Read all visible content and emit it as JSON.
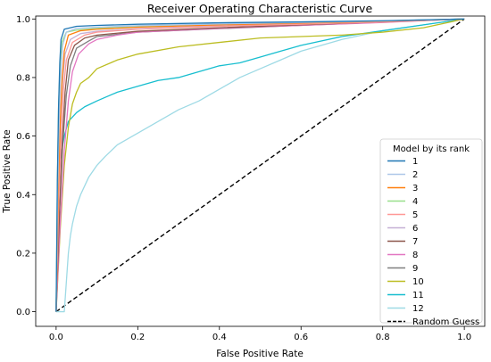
{
  "chart_data": {
    "type": "line",
    "title": "Receiver Operating Characteristic Curve",
    "xlabel": "False Positive Rate",
    "ylabel": "True Positive Rate",
    "xlim": [
      -0.05,
      1.05
    ],
    "ylim": [
      -0.05,
      1.01
    ],
    "xticks": [
      "0.0",
      "0.2",
      "0.4",
      "0.6",
      "0.8",
      "1.0"
    ],
    "yticks": [
      "0.0",
      "0.2",
      "0.4",
      "0.6",
      "0.8",
      "1.0"
    ],
    "grid": false,
    "legend": {
      "title": "Model by its rank",
      "placement": "lower-right"
    },
    "series": [
      {
        "name": "1",
        "color": "#1f77b4",
        "x": [
          0,
          0.003,
          0.006,
          0.009,
          0.012,
          0.02,
          0.05,
          0.1,
          0.2,
          0.4,
          0.6,
          0.8,
          1.0
        ],
        "y": [
          0,
          0.45,
          0.7,
          0.85,
          0.93,
          0.965,
          0.975,
          0.978,
          0.982,
          0.987,
          0.99,
          0.994,
          1.0
        ]
      },
      {
        "name": "2",
        "color": "#aec7e8",
        "x": [
          0,
          0.004,
          0.008,
          0.012,
          0.016,
          0.025,
          0.05,
          0.1,
          0.2,
          0.4,
          0.6,
          0.8,
          1.0
        ],
        "y": [
          0,
          0.42,
          0.68,
          0.83,
          0.91,
          0.955,
          0.968,
          0.972,
          0.977,
          0.983,
          0.988,
          0.993,
          1.0
        ]
      },
      {
        "name": "3",
        "color": "#ff7f0e",
        "x": [
          0,
          0.005,
          0.01,
          0.015,
          0.02,
          0.03,
          0.06,
          0.1,
          0.2,
          0.4,
          0.6,
          0.8,
          1.0
        ],
        "y": [
          0,
          0.4,
          0.65,
          0.8,
          0.89,
          0.945,
          0.96,
          0.965,
          0.972,
          0.98,
          0.986,
          0.992,
          1.0
        ]
      },
      {
        "name": "4",
        "color": "#98df8a",
        "x": [
          0,
          0.003,
          0.006,
          0.01,
          0.014,
          0.025,
          0.05,
          0.1,
          0.2,
          0.4,
          0.6,
          0.8,
          1.0
        ],
        "y": [
          0,
          0.42,
          0.7,
          0.85,
          0.92,
          0.955,
          0.962,
          0.968,
          0.975,
          0.982,
          0.988,
          0.993,
          1.0
        ]
      },
      {
        "name": "5",
        "color": "#ff9896",
        "x": [
          0,
          0.006,
          0.012,
          0.018,
          0.025,
          0.04,
          0.07,
          0.1,
          0.2,
          0.4,
          0.6,
          0.8,
          1.0
        ],
        "y": [
          0,
          0.35,
          0.6,
          0.76,
          0.86,
          0.92,
          0.945,
          0.955,
          0.965,
          0.975,
          0.982,
          0.99,
          1.0
        ]
      },
      {
        "name": "6",
        "color": "#c5b0d5",
        "x": [
          0,
          0.005,
          0.01,
          0.016,
          0.022,
          0.035,
          0.06,
          0.1,
          0.2,
          0.4,
          0.6,
          0.8,
          1.0
        ],
        "y": [
          0,
          0.38,
          0.63,
          0.79,
          0.88,
          0.93,
          0.95,
          0.958,
          0.967,
          0.977,
          0.984,
          0.991,
          1.0
        ]
      },
      {
        "name": "7",
        "color": "#8c564b",
        "x": [
          0,
          0.008,
          0.015,
          0.022,
          0.03,
          0.045,
          0.07,
          0.1,
          0.2,
          0.4,
          0.6,
          0.8,
          1.0
        ],
        "y": [
          0,
          0.33,
          0.58,
          0.75,
          0.86,
          0.91,
          0.935,
          0.945,
          0.958,
          0.97,
          0.98,
          0.99,
          1.0
        ]
      },
      {
        "name": "8",
        "color": "#e377c2",
        "x": [
          0,
          0.01,
          0.02,
          0.03,
          0.04,
          0.055,
          0.08,
          0.1,
          0.15,
          0.2,
          0.4,
          0.6,
          0.8,
          1.0
        ],
        "y": [
          0,
          0.3,
          0.55,
          0.72,
          0.82,
          0.88,
          0.915,
          0.93,
          0.945,
          0.955,
          0.968,
          0.978,
          0.988,
          1.0
        ]
      },
      {
        "name": "9",
        "color": "#7f7f7f",
        "x": [
          0,
          0.008,
          0.016,
          0.025,
          0.035,
          0.05,
          0.08,
          0.1,
          0.2,
          0.4,
          0.6,
          0.8,
          1.0
        ],
        "y": [
          0,
          0.32,
          0.57,
          0.74,
          0.84,
          0.9,
          0.925,
          0.94,
          0.955,
          0.967,
          0.978,
          0.989,
          1.0
        ]
      },
      {
        "name": "10",
        "color": "#bcbd22",
        "x": [
          0,
          0.01,
          0.02,
          0.03,
          0.04,
          0.05,
          0.06,
          0.08,
          0.1,
          0.15,
          0.2,
          0.3,
          0.4,
          0.5,
          0.6,
          0.7,
          0.8,
          0.9,
          1.0
        ],
        "y": [
          0,
          0.28,
          0.5,
          0.63,
          0.71,
          0.75,
          0.78,
          0.8,
          0.83,
          0.86,
          0.88,
          0.905,
          0.92,
          0.935,
          0.94,
          0.945,
          0.955,
          0.97,
          1.0
        ]
      },
      {
        "name": "11",
        "color": "#17becf",
        "x": [
          0,
          0.005,
          0.01,
          0.02,
          0.03,
          0.05,
          0.07,
          0.1,
          0.15,
          0.2,
          0.25,
          0.3,
          0.35,
          0.4,
          0.45,
          0.5,
          0.55,
          0.6,
          0.7,
          0.8,
          0.9,
          1.0
        ],
        "y": [
          0,
          0.4,
          0.52,
          0.6,
          0.65,
          0.68,
          0.7,
          0.72,
          0.75,
          0.77,
          0.79,
          0.8,
          0.82,
          0.84,
          0.85,
          0.87,
          0.89,
          0.91,
          0.94,
          0.96,
          0.98,
          1.0
        ]
      },
      {
        "name": "12",
        "color": "#9edae5",
        "x": [
          0,
          0.02,
          0.025,
          0.03,
          0.035,
          0.04,
          0.05,
          0.06,
          0.07,
          0.08,
          0.1,
          0.12,
          0.15,
          0.2,
          0.25,
          0.3,
          0.35,
          0.4,
          0.45,
          0.5,
          0.55,
          0.6,
          0.7,
          0.8,
          0.9,
          1.0
        ],
        "y": [
          0,
          0,
          0.1,
          0.2,
          0.26,
          0.3,
          0.36,
          0.4,
          0.43,
          0.46,
          0.5,
          0.53,
          0.57,
          0.61,
          0.65,
          0.69,
          0.72,
          0.76,
          0.8,
          0.83,
          0.86,
          0.89,
          0.93,
          0.96,
          0.98,
          1.0
        ]
      },
      {
        "name": "Random Guess",
        "color": "#000000",
        "dashed": true,
        "x": [
          0,
          1
        ],
        "y": [
          0,
          1
        ]
      }
    ]
  }
}
